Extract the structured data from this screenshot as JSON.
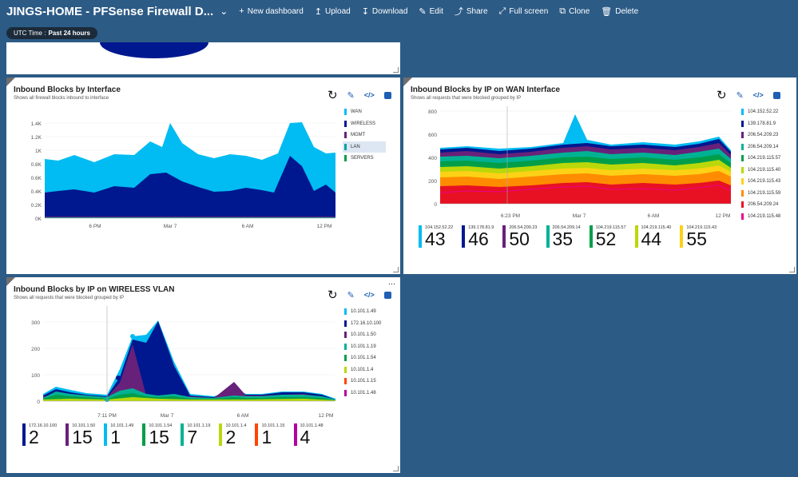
{
  "header": {
    "title": "JINGS-HOME - PFSense Firewall D...",
    "new_dashboard": "New dashboard",
    "upload": "Upload",
    "download": "Download",
    "edit": "Edit",
    "share": "Share",
    "full_screen": "Full screen",
    "clone": "Clone",
    "delete": "Delete"
  },
  "time_filter": {
    "label": "UTC Time :",
    "value": "Past 24 hours"
  },
  "tile1": {
    "title": "Inbound Blocks by Interface",
    "subtitle": "Shows all firewall blocks inbound to interface",
    "yticks": [
      "1.4K",
      "1.2K",
      "1K",
      "0.8K",
      "0.6K",
      "0.4K",
      "0.2K",
      "0K"
    ],
    "xticks": [
      "6 PM",
      "Mar 7",
      "6 AM",
      "12 PM"
    ],
    "legend": [
      {
        "name": "WAN",
        "color": "#00bcf2"
      },
      {
        "name": "WIRELESS",
        "color": "#00188f"
      },
      {
        "name": "MGMT",
        "color": "#68217a"
      },
      {
        "name": "LAN",
        "color": "#00a2a2"
      },
      {
        "name": "SERVERS",
        "color": "#009e49"
      }
    ]
  },
  "tile2": {
    "title": "Inbound Blocks by IP on WAN Interface",
    "subtitle": "Shows all requests that were blocked grouped by IP",
    "yticks": [
      "800",
      "600",
      "400",
      "200",
      "0"
    ],
    "xticks": [
      "6:23 PM",
      "Mar 7",
      "6 AM",
      "12 PM"
    ],
    "legend": [
      {
        "name": "104.152.52.22",
        "color": "#00bcf2"
      },
      {
        "name": "139.178.81.9",
        "color": "#00188f"
      },
      {
        "name": "206.54.209.23",
        "color": "#68217a"
      },
      {
        "name": "206.54.209.14",
        "color": "#00b294"
      },
      {
        "name": "104.219.115.57",
        "color": "#009e49"
      },
      {
        "name": "104.219.115.40",
        "color": "#bad80a"
      },
      {
        "name": "104.219.115.43",
        "color": "#fcd116"
      },
      {
        "name": "104.219.115.59",
        "color": "#ff8c00"
      },
      {
        "name": "206.54.209.24",
        "color": "#e81123"
      },
      {
        "name": "104.219.115.48",
        "color": "#ec008c"
      }
    ],
    "tiles": [
      {
        "ip": "104.152.52.22",
        "value": "43",
        "color": "#00bcf2"
      },
      {
        "ip": "139.178.81.9",
        "value": "46",
        "color": "#00188f"
      },
      {
        "ip": "206.54.209.23",
        "value": "50",
        "color": "#68217a"
      },
      {
        "ip": "206.54.209.14",
        "value": "35",
        "color": "#00b294"
      },
      {
        "ip": "104.219.115.57",
        "value": "52",
        "color": "#009e49"
      },
      {
        "ip": "104.219.115.40",
        "value": "44",
        "color": "#bad80a"
      },
      {
        "ip": "104.219.115.43",
        "value": "55",
        "color": "#fcd116"
      }
    ]
  },
  "tile3": {
    "title": "Inbound Blocks by IP on WIRELESS VLAN",
    "subtitle": "Shows all requests that were blocked grouped by IP",
    "more": "...",
    "yticks": [
      "300",
      "200",
      "100",
      "0"
    ],
    "xticks": [
      "7:11 PM",
      "Mar 7",
      "6 AM",
      "12 PM"
    ],
    "legend": [
      {
        "name": "10.101.1.49",
        "color": "#00bcf2"
      },
      {
        "name": "172.16.10.100",
        "color": "#00188f"
      },
      {
        "name": "10.101.1.50",
        "color": "#68217a"
      },
      {
        "name": "10.101.1.19",
        "color": "#00b294"
      },
      {
        "name": "10.101.1.54",
        "color": "#009e49"
      },
      {
        "name": "10.101.1.4",
        "color": "#bad80a"
      },
      {
        "name": "10.101.1.15",
        "color": "#ff4500"
      },
      {
        "name": "10.101.1.48",
        "color": "#b4009e"
      }
    ],
    "tiles": [
      {
        "ip": "172.16.10.100",
        "value": "2",
        "color": "#00188f"
      },
      {
        "ip": "10.101.1.50",
        "value": "15",
        "color": "#68217a"
      },
      {
        "ip": "10.101.1.49",
        "value": "1",
        "color": "#00bcf2"
      },
      {
        "ip": "10.101.1.54",
        "value": "15",
        "color": "#009e49"
      },
      {
        "ip": "10.101.1.19",
        "value": "7",
        "color": "#00b294"
      },
      {
        "ip": "10.101.1.4",
        "value": "2",
        "color": "#bad80a"
      },
      {
        "ip": "10.101.1.15",
        "value": "1",
        "color": "#ff4500"
      },
      {
        "ip": "10.101.1.48",
        "value": "4",
        "color": "#b4009e"
      }
    ]
  }
}
